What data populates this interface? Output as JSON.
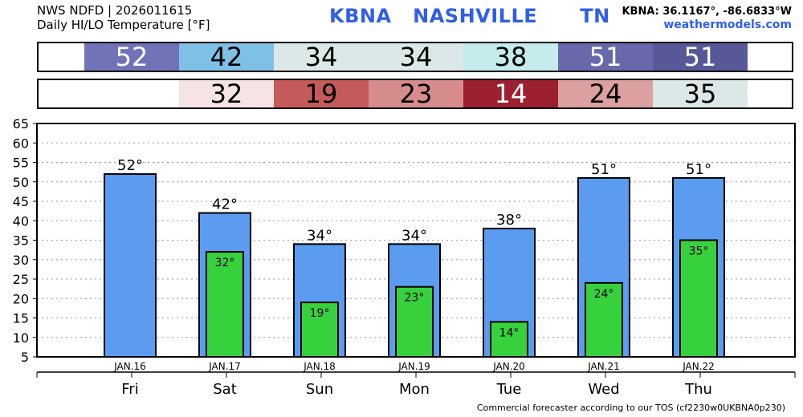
{
  "header": {
    "line1": "NWS NDFD | 2026011615",
    "line2": "Daily HI/LO Temperature [°F]",
    "station": "KBNA   NASHVILLE      TN",
    "coords": "KBNA: 36.1167°, -86.6833°W",
    "site": "weathermodels.com"
  },
  "footer": {
    "note": "Commercial forecaster according to our TOS (cf2230w0UKBNA0p230)"
  },
  "hi_row": [
    {
      "value": "52",
      "bg": "#7272b8",
      "color": "#ffffff"
    },
    {
      "value": "42",
      "bg": "#7ec0e6",
      "color": "#000000"
    },
    {
      "value": "34",
      "bg": "#dce8e8",
      "color": "#000000"
    },
    {
      "value": "34",
      "bg": "#dce8e8",
      "color": "#000000"
    },
    {
      "value": "38",
      "bg": "#c4ecec",
      "color": "#000000"
    },
    {
      "value": "51",
      "bg": "#6868aa",
      "color": "#ffffff"
    },
    {
      "value": "51",
      "bg": "#585898",
      "color": "#ffffff"
    }
  ],
  "lo_row": [
    {
      "value": "",
      "bg": "#ffffff",
      "color": "#000000"
    },
    {
      "value": "32",
      "bg": "#f6e4e4",
      "color": "#000000"
    },
    {
      "value": "19",
      "bg": "#c45a5a",
      "color": "#000000"
    },
    {
      "value": "23",
      "bg": "#d68c8c",
      "color": "#000000"
    },
    {
      "value": "14",
      "bg": "#9c2030",
      "color": "#ffffff"
    },
    {
      "value": "24",
      "bg": "#dca0a0",
      "color": "#000000"
    },
    {
      "value": "35",
      "bg": "#dce8e8",
      "color": "#000000"
    }
  ],
  "chart_data": {
    "type": "bar",
    "categories": [
      "JAN.16",
      "JAN.17",
      "JAN.18",
      "JAN.19",
      "JAN.20",
      "JAN.21",
      "JAN.22"
    ],
    "days": [
      "Fri",
      "Sat",
      "Sun",
      "Mon",
      "Tue",
      "Wed",
      "Thu"
    ],
    "series": [
      {
        "values": [
          52,
          42,
          34,
          34,
          38,
          51,
          51
        ],
        "color": "#5b9cf0",
        "labels": [
          "52°",
          "42°",
          "34°",
          "34°",
          "38°",
          "51°",
          "51°"
        ]
      },
      {
        "values": [
          null,
          32,
          19,
          23,
          14,
          24,
          35
        ],
        "color": "#38d13e",
        "labels": [
          "",
          "32°",
          "19°",
          "23°",
          "14°",
          "24°",
          "35°"
        ]
      }
    ],
    "yticks": [
      "5",
      "10",
      "15",
      "20",
      "25",
      "30",
      "35",
      "40",
      "45",
      "50",
      "55",
      "60",
      "65"
    ],
    "ylim": [
      5,
      65
    ],
    "grid": true
  }
}
